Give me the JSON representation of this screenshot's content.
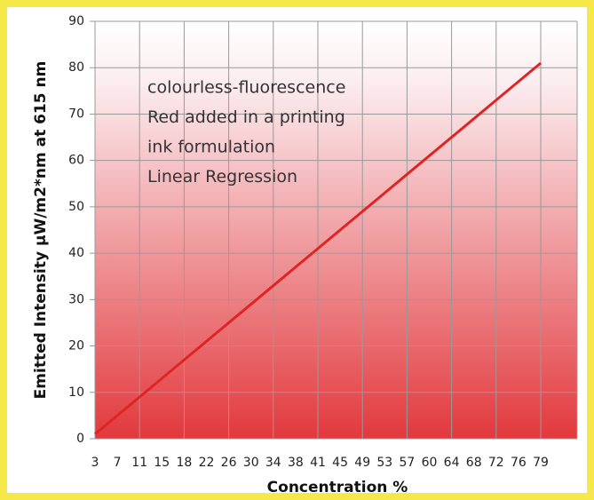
{
  "chart_data": {
    "type": "line",
    "xlabel": "Concentration %",
    "ylabel": "Emitted Intensity µW/m2*nm at 615 nm",
    "annotation": [
      "colourless-fluorescence",
      "Red added in a printing",
      "ink formulation",
      "Linear Regression"
    ],
    "categories": [
      "3",
      "7",
      "11",
      "15",
      "18",
      "22",
      "26",
      "30",
      "34",
      "38",
      "41",
      "45",
      "49",
      "53",
      "57",
      "60",
      "64",
      "68",
      "72",
      "76",
      "79"
    ],
    "series": [
      {
        "name": null,
        "color": "#e02424",
        "values": [
          1,
          5,
          9,
          13,
          17,
          21,
          25,
          29,
          33,
          37,
          41,
          45,
          49,
          53,
          57,
          61,
          65,
          69,
          73,
          77,
          81
        ]
      }
    ],
    "ylim": [
      0,
      90
    ],
    "yticks": [
      0,
      10,
      20,
      30,
      40,
      50,
      60,
      70,
      80,
      90
    ],
    "grid": true
  }
}
